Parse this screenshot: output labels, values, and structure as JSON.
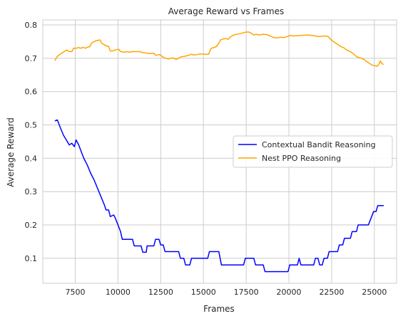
{
  "chart_data": {
    "type": "line",
    "title": "Average Reward vs Frames",
    "xlabel": "Frames",
    "ylabel": "Average Reward",
    "xlim": [
      5600,
      26300
    ],
    "ylim": [
      0.025,
      0.815
    ],
    "xticks": [
      7500,
      10000,
      12500,
      15000,
      17500,
      20000,
      22500,
      25000
    ],
    "yticks": [
      0.1,
      0.2,
      0.3,
      0.4,
      0.5,
      0.6,
      0.7,
      0.8
    ],
    "grid": true,
    "legend_position": "center-right",
    "series": [
      {
        "name": "Contextual Bandit Reasoning",
        "color": "#0000ff",
        "points": [
          [
            6300,
            0.512
          ],
          [
            6450,
            0.515
          ],
          [
            6600,
            0.495
          ],
          [
            6800,
            0.47
          ],
          [
            7000,
            0.453
          ],
          [
            7150,
            0.44
          ],
          [
            7300,
            0.445
          ],
          [
            7450,
            0.435
          ],
          [
            7550,
            0.455
          ],
          [
            7700,
            0.44
          ],
          [
            7850,
            0.42
          ],
          [
            8000,
            0.4
          ],
          [
            8200,
            0.38
          ],
          [
            8400,
            0.355
          ],
          [
            8600,
            0.335
          ],
          [
            8800,
            0.31
          ],
          [
            9000,
            0.285
          ],
          [
            9200,
            0.26
          ],
          [
            9300,
            0.245
          ],
          [
            9450,
            0.245
          ],
          [
            9550,
            0.225
          ],
          [
            9750,
            0.23
          ],
          [
            9850,
            0.22
          ],
          [
            10000,
            0.2
          ],
          [
            10150,
            0.18
          ],
          [
            10250,
            0.157
          ],
          [
            10500,
            0.157
          ],
          [
            10850,
            0.157
          ],
          [
            10950,
            0.137
          ],
          [
            11350,
            0.137
          ],
          [
            11450,
            0.118
          ],
          [
            11650,
            0.118
          ],
          [
            11700,
            0.137
          ],
          [
            12100,
            0.137
          ],
          [
            12200,
            0.157
          ],
          [
            12400,
            0.157
          ],
          [
            12500,
            0.14
          ],
          [
            12650,
            0.14
          ],
          [
            12750,
            0.12
          ],
          [
            13550,
            0.12
          ],
          [
            13650,
            0.1
          ],
          [
            13850,
            0.1
          ],
          [
            13950,
            0.08
          ],
          [
            14200,
            0.08
          ],
          [
            14300,
            0.1
          ],
          [
            15250,
            0.1
          ],
          [
            15350,
            0.12
          ],
          [
            15900,
            0.12
          ],
          [
            16050,
            0.08
          ],
          [
            17350,
            0.08
          ],
          [
            17450,
            0.1
          ],
          [
            17950,
            0.1
          ],
          [
            18050,
            0.08
          ],
          [
            18500,
            0.08
          ],
          [
            18600,
            0.06
          ],
          [
            19950,
            0.06
          ],
          [
            20050,
            0.08
          ],
          [
            20500,
            0.08
          ],
          [
            20600,
            0.1
          ],
          [
            20700,
            0.08
          ],
          [
            21450,
            0.08
          ],
          [
            21550,
            0.1
          ],
          [
            21700,
            0.1
          ],
          [
            21800,
            0.08
          ],
          [
            21950,
            0.08
          ],
          [
            22050,
            0.1
          ],
          [
            22250,
            0.1
          ],
          [
            22350,
            0.12
          ],
          [
            22850,
            0.12
          ],
          [
            22950,
            0.14
          ],
          [
            23150,
            0.14
          ],
          [
            23250,
            0.16
          ],
          [
            23600,
            0.16
          ],
          [
            23700,
            0.18
          ],
          [
            23950,
            0.18
          ],
          [
            24050,
            0.2
          ],
          [
            24650,
            0.2
          ],
          [
            24800,
            0.22
          ],
          [
            24950,
            0.24
          ],
          [
            25100,
            0.24
          ],
          [
            25200,
            0.258
          ],
          [
            25550,
            0.258
          ]
        ]
      },
      {
        "name": "Nest PPO Reasoning",
        "color": "#ffa500",
        "points": [
          [
            6300,
            0.693
          ],
          [
            6450,
            0.706
          ],
          [
            6550,
            0.71
          ],
          [
            6700,
            0.715
          ],
          [
            6850,
            0.72
          ],
          [
            7000,
            0.725
          ],
          [
            7150,
            0.72
          ],
          [
            7300,
            0.72
          ],
          [
            7400,
            0.73
          ],
          [
            7550,
            0.73
          ],
          [
            7700,
            0.732
          ],
          [
            7850,
            0.73
          ],
          [
            7950,
            0.733
          ],
          [
            8100,
            0.73
          ],
          [
            8200,
            0.733
          ],
          [
            8350,
            0.735
          ],
          [
            8450,
            0.745
          ],
          [
            8600,
            0.75
          ],
          [
            8750,
            0.753
          ],
          [
            8950,
            0.755
          ],
          [
            9050,
            0.745
          ],
          [
            9200,
            0.74
          ],
          [
            9350,
            0.737
          ],
          [
            9450,
            0.735
          ],
          [
            9550,
            0.722
          ],
          [
            9700,
            0.722
          ],
          [
            9850,
            0.725
          ],
          [
            10050,
            0.727
          ],
          [
            10150,
            0.72
          ],
          [
            10400,
            0.718
          ],
          [
            10500,
            0.72
          ],
          [
            10700,
            0.718
          ],
          [
            10800,
            0.72
          ],
          [
            11300,
            0.72
          ],
          [
            11400,
            0.717
          ],
          [
            11600,
            0.716
          ],
          [
            11800,
            0.714
          ],
          [
            12100,
            0.715
          ],
          [
            12200,
            0.709
          ],
          [
            12400,
            0.711
          ],
          [
            12500,
            0.709
          ],
          [
            12650,
            0.703
          ],
          [
            12800,
            0.7
          ],
          [
            12950,
            0.698
          ],
          [
            13100,
            0.7
          ],
          [
            13250,
            0.701
          ],
          [
            13400,
            0.696
          ],
          [
            13600,
            0.702
          ],
          [
            13750,
            0.705
          ],
          [
            13900,
            0.706
          ],
          [
            14050,
            0.708
          ],
          [
            14200,
            0.71
          ],
          [
            14300,
            0.712
          ],
          [
            14400,
            0.71
          ],
          [
            14600,
            0.711
          ],
          [
            14800,
            0.713
          ],
          [
            15000,
            0.712
          ],
          [
            15300,
            0.712
          ],
          [
            15450,
            0.73
          ],
          [
            15600,
            0.732
          ],
          [
            15750,
            0.735
          ],
          [
            15900,
            0.745
          ],
          [
            16000,
            0.755
          ],
          [
            16150,
            0.758
          ],
          [
            16300,
            0.759
          ],
          [
            16450,
            0.757
          ],
          [
            16550,
            0.763
          ],
          [
            16700,
            0.768
          ],
          [
            16850,
            0.771
          ],
          [
            17050,
            0.773
          ],
          [
            17250,
            0.775
          ],
          [
            17450,
            0.778
          ],
          [
            17650,
            0.779
          ],
          [
            17800,
            0.775
          ],
          [
            17950,
            0.77
          ],
          [
            18100,
            0.772
          ],
          [
            18250,
            0.77
          ],
          [
            18500,
            0.772
          ],
          [
            18700,
            0.771
          ],
          [
            18900,
            0.767
          ],
          [
            19100,
            0.762
          ],
          [
            19300,
            0.761
          ],
          [
            19500,
            0.763
          ],
          [
            19700,
            0.762
          ],
          [
            19900,
            0.765
          ],
          [
            20050,
            0.768
          ],
          [
            20300,
            0.767
          ],
          [
            20600,
            0.768
          ],
          [
            20850,
            0.769
          ],
          [
            21050,
            0.77
          ],
          [
            21250,
            0.769
          ],
          [
            21450,
            0.768
          ],
          [
            21600,
            0.766
          ],
          [
            21750,
            0.765
          ],
          [
            21950,
            0.766
          ],
          [
            22150,
            0.767
          ],
          [
            22300,
            0.765
          ],
          [
            22450,
            0.756
          ],
          [
            22600,
            0.75
          ],
          [
            22750,
            0.745
          ],
          [
            22900,
            0.74
          ],
          [
            23050,
            0.735
          ],
          [
            23200,
            0.732
          ],
          [
            23350,
            0.726
          ],
          [
            23500,
            0.722
          ],
          [
            23650,
            0.718
          ],
          [
            23800,
            0.712
          ],
          [
            23950,
            0.705
          ],
          [
            24100,
            0.702
          ],
          [
            24250,
            0.7
          ],
          [
            24400,
            0.696
          ],
          [
            24550,
            0.69
          ],
          [
            24700,
            0.685
          ],
          [
            24850,
            0.68
          ],
          [
            25000,
            0.678
          ],
          [
            25150,
            0.676
          ],
          [
            25250,
            0.68
          ],
          [
            25350,
            0.692
          ],
          [
            25450,
            0.683
          ],
          [
            25550,
            0.682
          ]
        ]
      }
    ]
  }
}
